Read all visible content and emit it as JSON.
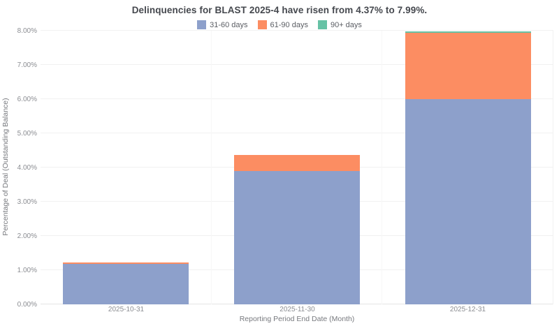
{
  "chart_data": {
    "type": "bar",
    "stacked": true,
    "title": "Delinquencies for BLAST 2025-4 have risen from 4.37% to 7.99%.",
    "xlabel": "Reporting Period End Date (Month)",
    "ylabel": "Percentage of Deal (Outstanding Balance)",
    "categories": [
      "2025-10-31",
      "2025-11-30",
      "2025-12-31"
    ],
    "series": [
      {
        "name": "31-60 days",
        "color": "#8da0cb",
        "values": [
          1.18,
          3.9,
          6.0
        ]
      },
      {
        "name": "61-90 days",
        "color": "#fc8d62",
        "values": [
          0.04,
          0.47,
          1.93
        ]
      },
      {
        "name": "90+ days",
        "color": "#66c2a5",
        "values": [
          0.0,
          0.0,
          0.06
        ]
      }
    ],
    "stack_totals": [
      1.22,
      4.37,
      7.99
    ],
    "ylim": [
      0,
      8
    ],
    "y_ticks": [
      0,
      1,
      2,
      3,
      4,
      5,
      6,
      7,
      8
    ],
    "y_tick_labels": [
      "0.00%",
      "1.00%",
      "2.00%",
      "3.00%",
      "4.00%",
      "5.00%",
      "6.00%",
      "7.00%",
      "8.00%"
    ],
    "grid": "horizontal-major-and-faint-vertical-category-separators",
    "legend_position": "top-center",
    "background_color": "#ffffff",
    "title_color": "#45484e",
    "tick_label_color": "#8b8d92",
    "axis_title_color": "#77797e"
  }
}
